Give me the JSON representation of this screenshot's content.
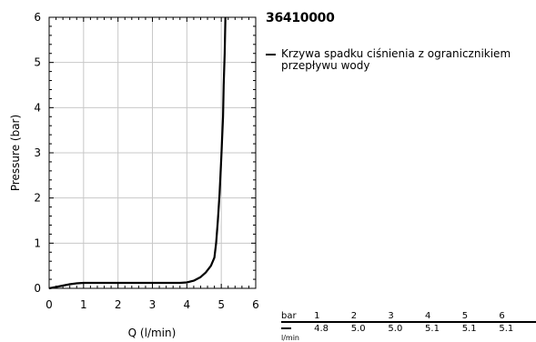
{
  "chart_data": {
    "type": "line",
    "title": "36410000",
    "xlabel": "Q (l/min)",
    "ylabel": "Pressure (bar)",
    "xlim": [
      0,
      6
    ],
    "ylim": [
      0,
      6
    ],
    "xticks": [
      "0",
      "1",
      "2",
      "3",
      "4",
      "5",
      "6"
    ],
    "yticks": [
      "0",
      "1",
      "2",
      "3",
      "4",
      "5",
      "6"
    ],
    "grid": true,
    "legend_position": "right",
    "series": [
      {
        "name": "Krzywa spadku ciśnienia z ogranicznikiem przepływu wody",
        "color": "#000000",
        "points": [
          [
            0.0,
            0.0
          ],
          [
            0.2,
            0.03
          ],
          [
            0.4,
            0.06
          ],
          [
            0.6,
            0.09
          ],
          [
            0.8,
            0.11
          ],
          [
            1.0,
            0.12
          ],
          [
            2.0,
            0.12
          ],
          [
            3.0,
            0.12
          ],
          [
            3.8,
            0.12
          ],
          [
            4.0,
            0.13
          ],
          [
            4.2,
            0.17
          ],
          [
            4.4,
            0.25
          ],
          [
            4.55,
            0.35
          ],
          [
            4.7,
            0.5
          ],
          [
            4.8,
            0.68
          ],
          [
            4.85,
            1.0
          ],
          [
            4.9,
            1.5
          ],
          [
            4.95,
            2.1
          ],
          [
            5.0,
            2.9
          ],
          [
            5.05,
            3.8
          ],
          [
            5.07,
            4.5
          ],
          [
            5.1,
            5.2
          ],
          [
            5.12,
            6.0
          ]
        ]
      }
    ]
  },
  "legend": {
    "label": "Krzywa spadku ciśnienia z ogranicznikiem przepływu wody"
  },
  "table": {
    "header_unit": "bar",
    "header_values": [
      "1",
      "2",
      "3",
      "4",
      "5",
      "6"
    ],
    "row_unit": "l/min",
    "row_values": [
      "4.8",
      "5.0",
      "5.0",
      "5.1",
      "5.1",
      "5.1"
    ]
  }
}
